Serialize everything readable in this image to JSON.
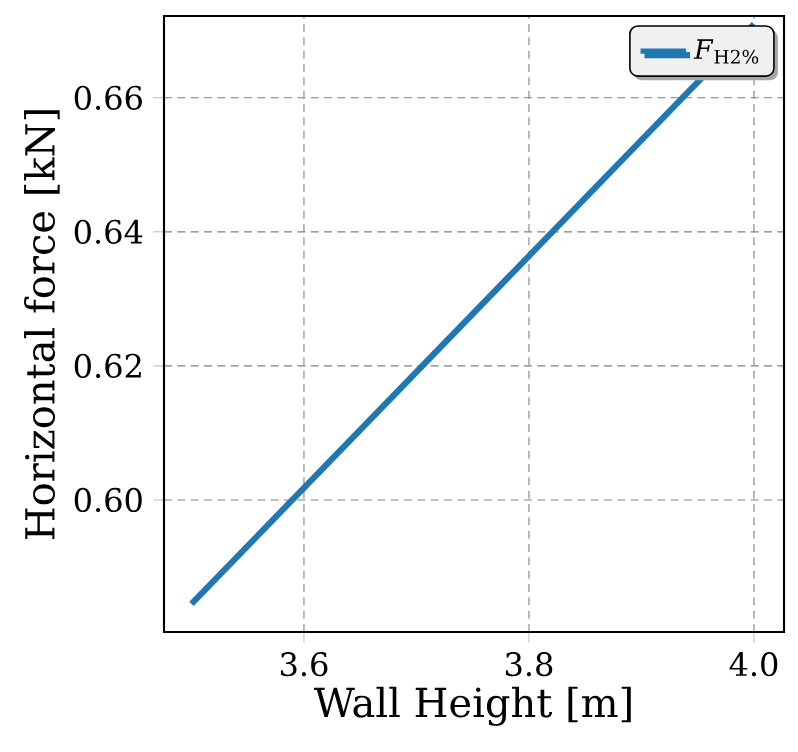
{
  "chart_data": {
    "type": "line",
    "xlabel": "Wall Height [m]",
    "ylabel": "Horizontal force [kN]",
    "x": [
      3.5,
      4.0
    ],
    "series": [
      {
        "name": "*F*$_{H2%}$",
        "color": "#1f77b4",
        "values": [
          0.5845,
          0.671
        ]
      }
    ],
    "xlim": [
      3.4756,
      4.0267
    ],
    "ylim": [
      0.5803,
      0.6722
    ],
    "xticks": [
      {
        "value": 3.6,
        "label": "3.6"
      },
      {
        "value": 3.8,
        "label": "3.8"
      },
      {
        "value": 4.0,
        "label": "4.0"
      }
    ],
    "yticks": [
      {
        "value": 0.6,
        "label": "0.60"
      },
      {
        "value": 0.62,
        "label": "0.62"
      },
      {
        "value": 0.64,
        "label": "0.64"
      },
      {
        "value": 0.66,
        "label": "0.66"
      }
    ],
    "grid": true,
    "legend": "top right",
    "line_style": "solid",
    "marker": "none"
  }
}
